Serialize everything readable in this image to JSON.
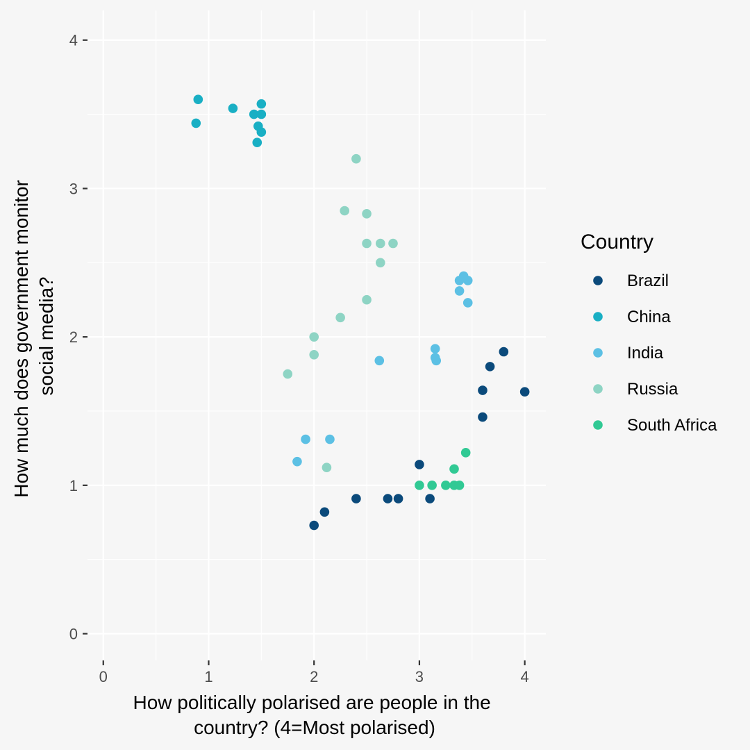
{
  "chart_data": {
    "type": "scatter",
    "title": "",
    "xlabel": [
      "How politically polarised are people in the",
      "country? (4=Most polarised)"
    ],
    "ylabel": [
      "How much does government monitor",
      "social media?"
    ],
    "xlim": [
      -0.15,
      4.2
    ],
    "ylim": [
      -0.18,
      4.2
    ],
    "x_ticks": [
      0,
      1,
      2,
      3,
      4
    ],
    "y_ticks": [
      0,
      1,
      2,
      3,
      4
    ],
    "grid": true,
    "legend": {
      "title": "Country",
      "placement": "right"
    },
    "series": [
      {
        "name": "Brazil",
        "color": "#0b4a7b",
        "points": [
          [
            2.0,
            0.73
          ],
          [
            2.1,
            0.82
          ],
          [
            2.4,
            0.91
          ],
          [
            2.7,
            0.91
          ],
          [
            2.8,
            0.91
          ],
          [
            3.0,
            1.14
          ],
          [
            3.1,
            0.91
          ],
          [
            3.6,
            1.64
          ],
          [
            3.6,
            1.46
          ],
          [
            3.67,
            1.8
          ],
          [
            3.8,
            1.9
          ],
          [
            4.0,
            1.63
          ]
        ]
      },
      {
        "name": "China",
        "color": "#19afc4",
        "points": [
          [
            0.9,
            3.6
          ],
          [
            0.88,
            3.44
          ],
          [
            1.23,
            3.54
          ],
          [
            1.43,
            3.5
          ],
          [
            1.5,
            3.57
          ],
          [
            1.5,
            3.5
          ],
          [
            1.47,
            3.42
          ],
          [
            1.5,
            3.38
          ],
          [
            1.46,
            3.31
          ]
        ]
      },
      {
        "name": "India",
        "color": "#5cc0e4",
        "points": [
          [
            1.92,
            1.31
          ],
          [
            1.84,
            1.16
          ],
          [
            2.15,
            1.31
          ],
          [
            2.62,
            1.84
          ],
          [
            3.15,
            1.92
          ],
          [
            3.15,
            1.86
          ],
          [
            3.16,
            1.84
          ],
          [
            3.38,
            2.38
          ],
          [
            3.42,
            2.41
          ],
          [
            3.46,
            2.38
          ],
          [
            3.38,
            2.31
          ],
          [
            3.46,
            2.23
          ]
        ]
      },
      {
        "name": "Russia",
        "color": "#8ed4c4",
        "points": [
          [
            2.4,
            3.2
          ],
          [
            2.29,
            2.85
          ],
          [
            2.5,
            2.83
          ],
          [
            2.5,
            2.63
          ],
          [
            2.63,
            2.63
          ],
          [
            2.75,
            2.63
          ],
          [
            2.63,
            2.5
          ],
          [
            2.5,
            2.25
          ],
          [
            2.25,
            2.13
          ],
          [
            2.0,
            2.0
          ],
          [
            2.0,
            1.88
          ],
          [
            1.75,
            1.75
          ],
          [
            2.12,
            1.12
          ]
        ]
      },
      {
        "name": "South Africa",
        "color": "#31c994",
        "points": [
          [
            3.0,
            1.0
          ],
          [
            3.12,
            1.0
          ],
          [
            3.25,
            1.0
          ],
          [
            3.33,
            1.0
          ],
          [
            3.38,
            1.0
          ],
          [
            3.33,
            1.11
          ],
          [
            3.44,
            1.22
          ]
        ]
      }
    ]
  }
}
